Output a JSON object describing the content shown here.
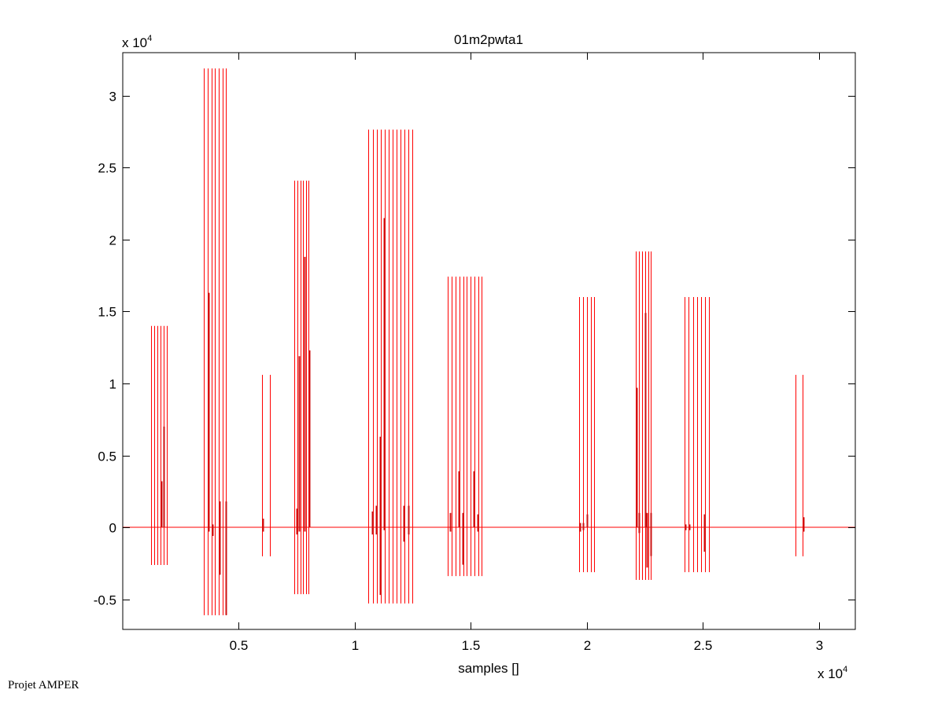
{
  "chart_data": {
    "type": "line",
    "title": "01m2pwta1",
    "xlabel": "samples []",
    "ylabel": "",
    "x_multiplier": "x 10",
    "x_exponent": "4",
    "y_multiplier": "x 10",
    "y_exponent": "4",
    "xlim": [
      0,
      31570
    ],
    "ylim": [
      -7100,
      33000
    ],
    "grid": false,
    "line_color": "#ff0000",
    "xticks": [
      {
        "value": 5000,
        "label": "0.5"
      },
      {
        "value": 10000,
        "label": "1"
      },
      {
        "value": 15000,
        "label": "1.5"
      },
      {
        "value": 20000,
        "label": "2"
      },
      {
        "value": 25000,
        "label": "2.5"
      },
      {
        "value": 30000,
        "label": "3"
      }
    ],
    "yticks": [
      {
        "value": -5000,
        "label": "-0.5"
      },
      {
        "value": 0,
        "label": "0"
      },
      {
        "value": 5000,
        "label": "0.5"
      },
      {
        "value": 10000,
        "label": "1"
      },
      {
        "value": 15000,
        "label": "1.5"
      },
      {
        "value": 20000,
        "label": "2"
      },
      {
        "value": 25000,
        "label": "2.5"
      },
      {
        "value": 30000,
        "label": "3"
      }
    ],
    "baseline": 0,
    "bursts": [
      {
        "x_start": 1237,
        "x_end": 1915,
        "count": 6,
        "ymax": 14000,
        "ymin": -2620,
        "partials": [
          {
            "x": 1645,
            "ymax": 3200,
            "ymin": 0
          },
          {
            "x": 1780,
            "ymax": 7000,
            "ymin": 0
          }
        ]
      },
      {
        "x_start": 3509,
        "x_end": 4458,
        "count": 7,
        "ymax": 31900,
        "ymin": -6120,
        "partials": [
          {
            "x": 3680,
            "ymax": 16300,
            "ymin": -300
          },
          {
            "x": 3850,
            "ymax": 200,
            "ymin": -600
          },
          {
            "x": 4180,
            "ymax": 1800,
            "ymin": -3300
          },
          {
            "x": 4430,
            "ymax": 1800,
            "ymin": -6100
          }
        ]
      },
      {
        "x_start": 6017,
        "x_end": 6356,
        "count": 2,
        "ymax": 10600,
        "ymin": -2020,
        "partials": [
          {
            "x": 6050,
            "ymax": 600,
            "ymin": -300
          }
        ]
      },
      {
        "x_start": 7407,
        "x_end": 8017,
        "count": 6,
        "ymax": 24100,
        "ymin": -4650,
        "partials": [
          {
            "x": 7510,
            "ymax": 1300,
            "ymin": -500
          },
          {
            "x": 7610,
            "ymax": 11900,
            "ymin": -300
          },
          {
            "x": 7820,
            "ymax": 18800,
            "ymin": -300
          },
          {
            "x": 8040,
            "ymax": 12300,
            "ymin": 0
          }
        ]
      },
      {
        "x_start": 10594,
        "x_end": 12492,
        "count": 12,
        "ymax": 27650,
        "ymin": -5300,
        "partials": [
          {
            "x": 10760,
            "ymax": 1100,
            "ymin": -500
          },
          {
            "x": 10930,
            "ymax": 1500,
            "ymin": -500
          },
          {
            "x": 11100,
            "ymax": 6300,
            "ymin": -4700
          },
          {
            "x": 11270,
            "ymax": 21500,
            "ymin": -200
          },
          {
            "x": 12100,
            "ymax": 1500,
            "ymin": -1000
          },
          {
            "x": 12320,
            "ymax": 1500,
            "ymin": -500
          }
        ]
      },
      {
        "x_start": 14018,
        "x_end": 15476,
        "count": 10,
        "ymax": 17430,
        "ymin": -3390,
        "partials": [
          {
            "x": 14100,
            "ymax": 1000,
            "ymin": -300
          },
          {
            "x": 14480,
            "ymax": 3900,
            "ymin": 0
          },
          {
            "x": 14650,
            "ymax": 1000,
            "ymin": -2600
          },
          {
            "x": 15130,
            "ymax": 3900,
            "ymin": 0
          },
          {
            "x": 15300,
            "ymax": 900,
            "ymin": -300
          }
        ]
      },
      {
        "x_start": 19679,
        "x_end": 20323,
        "count": 5,
        "ymax": 16010,
        "ymin": -3120,
        "partials": [
          {
            "x": 19700,
            "ymax": 300,
            "ymin": -300
          },
          {
            "x": 19850,
            "ymax": 300,
            "ymin": -200
          },
          {
            "x": 20000,
            "ymax": 900,
            "ymin": 0
          }
        ]
      },
      {
        "x_start": 22120,
        "x_end": 22764,
        "count": 6,
        "ymax": 19180,
        "ymin": -3660,
        "partials": [
          {
            "x": 22130,
            "ymax": 9700,
            "ymin": 0
          },
          {
            "x": 22260,
            "ymax": 1000,
            "ymin": -400
          },
          {
            "x": 22520,
            "ymax": 14900,
            "ymin": 0
          },
          {
            "x": 22600,
            "ymax": 1000,
            "ymin": -2800
          },
          {
            "x": 22740,
            "ymax": 1000,
            "ymin": -2000
          }
        ]
      },
      {
        "x_start": 24221,
        "x_end": 25272,
        "count": 7,
        "ymax": 16010,
        "ymin": -3120,
        "partials": [
          {
            "x": 24240,
            "ymax": 200,
            "ymin": -200
          },
          {
            "x": 24400,
            "ymax": 200,
            "ymin": -200
          },
          {
            "x": 25060,
            "ymax": 900,
            "ymin": -1700
          }
        ]
      },
      {
        "x_start": 29000,
        "x_end": 29305,
        "count": 2,
        "ymax": 10600,
        "ymin": -2020,
        "partials": [
          {
            "x": 29320,
            "ymax": 700,
            "ymin": -300
          }
        ]
      }
    ]
  },
  "footer": {
    "text": "Projet AMPER"
  }
}
